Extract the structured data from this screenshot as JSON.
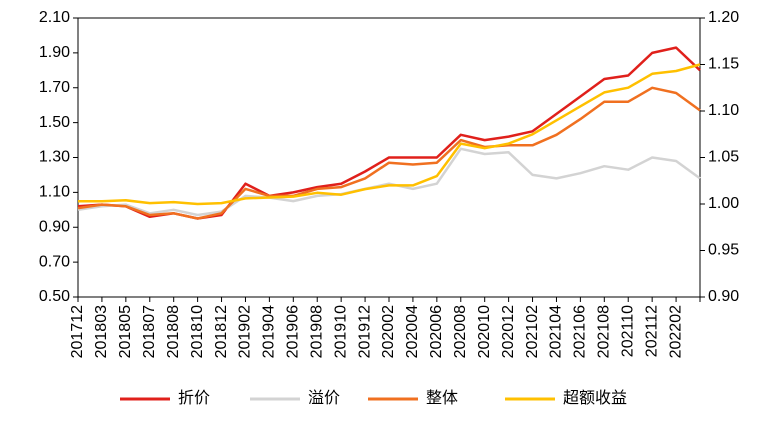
{
  "chart_data": {
    "type": "line",
    "categories": [
      "201712",
      "201803",
      "201805",
      "201807",
      "201808",
      "201810",
      "201812",
      "201902",
      "201904",
      "201906",
      "201908",
      "201910",
      "201912",
      "202002",
      "202004",
      "202006",
      "202008",
      "202010",
      "202012",
      "202102",
      "202104",
      "202106",
      "202108",
      "202110",
      "202112",
      "202202",
      null
    ],
    "series": [
      {
        "name": "折价",
        "color": "#e0201b",
        "values": [
          1.02,
          1.03,
          1.02,
          0.96,
          0.98,
          0.95,
          0.97,
          1.15,
          1.08,
          1.1,
          1.13,
          1.15,
          1.22,
          1.3,
          1.3,
          1.3,
          1.43,
          1.4,
          1.42,
          1.45,
          1.55,
          1.65,
          1.75,
          1.77,
          1.9,
          1.93,
          1.8
        ]
      },
      {
        "name": "溢价",
        "color": "#d3d3d3",
        "values": [
          1.0,
          1.02,
          1.03,
          0.98,
          1.0,
          0.97,
          0.99,
          1.08,
          1.07,
          1.05,
          1.08,
          1.09,
          1.12,
          1.15,
          1.12,
          1.15,
          1.35,
          1.32,
          1.33,
          1.2,
          1.18,
          1.21,
          1.25,
          1.23,
          1.3,
          1.28,
          1.18
        ]
      },
      {
        "name": "整体",
        "color": "#f07020",
        "values": [
          1.01,
          1.03,
          1.02,
          0.97,
          0.98,
          0.95,
          0.98,
          1.12,
          1.08,
          1.08,
          1.12,
          1.13,
          1.18,
          1.27,
          1.26,
          1.27,
          1.4,
          1.36,
          1.37,
          1.37,
          1.43,
          1.52,
          1.62,
          1.62,
          1.7,
          1.67,
          1.57
        ]
      },
      {
        "name": "超额收益",
        "color": "#ffc000",
        "axis": "y2",
        "values": [
          1.003,
          1.003,
          1.004,
          1.001,
          1.002,
          1.0,
          1.001,
          1.006,
          1.007,
          1.008,
          1.012,
          1.01,
          1.016,
          1.02,
          1.02,
          1.03,
          1.065,
          1.06,
          1.065,
          1.075,
          1.09,
          1.105,
          1.12,
          1.125,
          1.14,
          1.143,
          1.15
        ]
      }
    ],
    "ylim": [
      0.5,
      2.1
    ],
    "yticks": [
      {
        "value": 0.5,
        "label": "0.50"
      },
      {
        "value": 0.7,
        "label": "0.70"
      },
      {
        "value": 0.9,
        "label": "0.90"
      },
      {
        "value": 1.1,
        "label": "1.10"
      },
      {
        "value": 1.3,
        "label": "1.30"
      },
      {
        "value": 1.5,
        "label": "1.50"
      },
      {
        "value": 1.7,
        "label": "1.70"
      },
      {
        "value": 1.9,
        "label": "1.90"
      },
      {
        "value": 2.1,
        "label": "2.10"
      }
    ],
    "y2lim": [
      0.9,
      1.2
    ],
    "y2ticks": [
      {
        "value": 0.9,
        "label": "0.90"
      },
      {
        "value": 0.95,
        "label": "0.95"
      },
      {
        "value": 1.0,
        "label": "1.00"
      },
      {
        "value": 1.05,
        "label": "1.05"
      },
      {
        "value": 1.1,
        "label": "1.10"
      },
      {
        "value": 1.15,
        "label": "1.15"
      },
      {
        "value": 1.2,
        "label": "1.20"
      }
    ],
    "legend": "bottom"
  }
}
